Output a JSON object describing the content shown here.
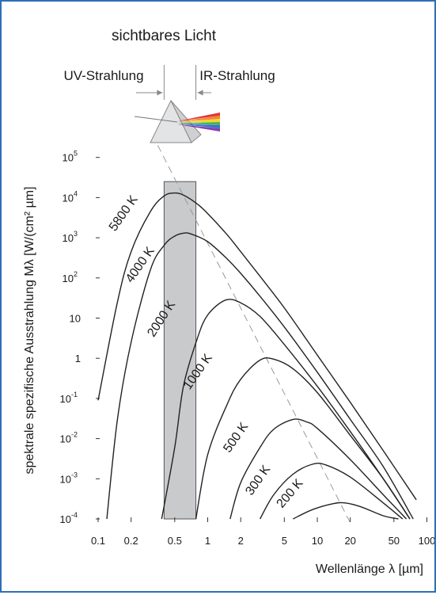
{
  "chart_data": {
    "type": "line",
    "title": "sichtbares Licht",
    "region_labels": {
      "uv": "UV-Strahlung",
      "ir": "IR-Strahlung"
    },
    "xlabel": "Wellenlänge λ [µm]",
    "ylabel": "spektrale spezifische Ausstrahlung Mλ [W/(cm² µm]",
    "xscale": "log",
    "yscale": "log",
    "xlim": [
      0.08,
      100
    ],
    "ylim": [
      0.0001,
      1000000
    ],
    "x_ticks": [
      {
        "value": 0.1,
        "label": "0.1"
      },
      {
        "value": 0.2,
        "label": "0.2"
      },
      {
        "value": 0.5,
        "label": "0.5"
      },
      {
        "value": 1,
        "label": "1"
      },
      {
        "value": 2,
        "label": "2"
      },
      {
        "value": 5,
        "label": "5"
      },
      {
        "value": 10,
        "label": "10"
      },
      {
        "value": 20,
        "label": "20"
      },
      {
        "value": 50,
        "label": "50"
      },
      {
        "value": 100,
        "label": "100"
      }
    ],
    "y_ticks": [
      {
        "value": 0.0001,
        "base": "10",
        "exp": "-4"
      },
      {
        "value": 0.001,
        "base": "10",
        "exp": "-3"
      },
      {
        "value": 0.01,
        "base": "10",
        "exp": "-2"
      },
      {
        "value": 0.1,
        "base": "10",
        "exp": "-1"
      },
      {
        "value": 1,
        "base": "1",
        "exp": ""
      },
      {
        "value": 10,
        "base": "10",
        "exp": ""
      },
      {
        "value": 100,
        "base": "10",
        "exp": "2"
      },
      {
        "value": 1000,
        "base": "10",
        "exp": "3"
      },
      {
        "value": 10000,
        "base": "10",
        "exp": "4"
      },
      {
        "value": 100000,
        "base": "10",
        "exp": "5"
      }
    ],
    "visible_band": {
      "from": 0.4,
      "to": 0.78,
      "top": 25000
    },
    "wien_line": [
      {
        "x": 0.35,
        "y": 200000
      },
      {
        "x": 20,
        "y": 8e-05
      }
    ],
    "series": [
      {
        "name": "5800 K",
        "x": [
          0.1,
          0.15,
          0.2,
          0.3,
          0.4,
          0.5,
          0.6,
          0.8,
          1,
          1.5,
          2,
          3,
          5,
          10,
          20,
          40,
          80
        ],
        "y": [
          0.09,
          25,
          450,
          4500,
          11000,
          13000,
          11500,
          7000,
          4000,
          1200,
          450,
          110,
          18,
          1.2,
          0.08,
          0.005,
          0.0003
        ]
      },
      {
        "name": "4000 K",
        "x": [
          0.12,
          0.15,
          0.2,
          0.3,
          0.4,
          0.5,
          0.6,
          0.7,
          1,
          1.5,
          2,
          3,
          5,
          10,
          20,
          40,
          75
        ],
        "y": [
          0.0001,
          0.03,
          2.5,
          160,
          650,
          1100,
          1300,
          1250,
          800,
          300,
          130,
          35,
          6,
          0.45,
          0.03,
          0.002,
          0.0001
        ]
      },
      {
        "name": "2000 K",
        "x": [
          0.38,
          0.5,
          0.6,
          0.8,
          1,
          1.45,
          2,
          3,
          5,
          10,
          20,
          40,
          70
        ],
        "y": [
          0.0001,
          0.006,
          0.2,
          3,
          12,
          28,
          24,
          11,
          2.2,
          0.2,
          0.015,
          0.001,
          0.0001
        ]
      },
      {
        "name": "1000 K",
        "x": [
          0.78,
          1,
          1.5,
          2,
          3,
          4,
          6,
          10,
          20,
          40,
          70
        ],
        "y": [
          0.0001,
          0.004,
          0.07,
          0.3,
          0.9,
          0.95,
          0.55,
          0.14,
          0.012,
          0.001,
          0.0001
        ]
      },
      {
        "name": "500 K",
        "x": [
          1.6,
          2,
          3,
          4,
          6,
          8,
          10,
          20,
          40,
          65
        ],
        "y": [
          0.0001,
          0.0008,
          0.006,
          0.017,
          0.03,
          0.026,
          0.018,
          0.003,
          0.0004,
          0.0001
        ]
      },
      {
        "name": "300 K",
        "x": [
          3,
          4,
          6,
          9,
          12,
          20,
          40,
          60
        ],
        "y": [
          0.0001,
          0.0004,
          0.0013,
          0.0023,
          0.0022,
          0.0011,
          0.00025,
          0.0001
        ]
      },
      {
        "name": "200 K",
        "x": [
          6,
          9,
          14,
          18,
          25,
          40,
          55
        ],
        "y": [
          0.0001,
          0.00017,
          0.00024,
          0.00025,
          0.0002,
          0.00012,
          0.0001
        ]
      }
    ]
  }
}
